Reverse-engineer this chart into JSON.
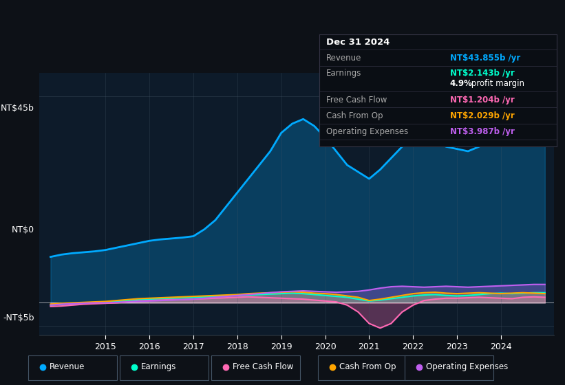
{
  "background_color": "#0d1117",
  "plot_bg_color": "#0d1b2a",
  "title_box": {
    "date": "Dec 31 2024",
    "revenue_label": "Revenue",
    "revenue_value": "NT$43.855b /yr",
    "revenue_color": "#00aaff",
    "earnings_label": "Earnings",
    "earnings_value": "NT$2.143b /yr",
    "earnings_color": "#00ffcc",
    "margin_value": "4.9%",
    "margin_text": " profit margin",
    "margin_color": "#ffffff",
    "fcf_label": "Free Cash Flow",
    "fcf_value": "NT$1.204b /yr",
    "fcf_color": "#ff69b4",
    "cashfromop_label": "Cash From Op",
    "cashfromop_value": "NT$2.029b /yr",
    "cashfromop_color": "#ffa500",
    "opex_label": "Operating Expenses",
    "opex_value": "NT$3.987b /yr",
    "opex_color": "#bf5fef"
  },
  "ylim": [
    -7,
    50
  ],
  "yticks": [
    0,
    45
  ],
  "ytick_labels": [
    "NT$0",
    "NT$45b"
  ],
  "ytick_neg": [
    -5
  ],
  "ytick_neg_labels": [
    "-NT$5b"
  ],
  "xlim": [
    2013.5,
    2025.2
  ],
  "xticks": [
    2015,
    2016,
    2017,
    2018,
    2019,
    2020,
    2021,
    2022,
    2023,
    2024
  ],
  "legend": [
    {
      "label": "Revenue",
      "color": "#00aaff"
    },
    {
      "label": "Earnings",
      "color": "#00ffcc"
    },
    {
      "label": "Free Cash Flow",
      "color": "#ff69b4"
    },
    {
      "label": "Cash From Op",
      "color": "#ffa500"
    },
    {
      "label": "Operating Expenses",
      "color": "#bf5fef"
    }
  ],
  "revenue": {
    "x": [
      2013.75,
      2014.0,
      2014.25,
      2014.5,
      2014.75,
      2015.0,
      2015.25,
      2015.5,
      2015.75,
      2016.0,
      2016.25,
      2016.5,
      2016.75,
      2017.0,
      2017.25,
      2017.5,
      2017.75,
      2018.0,
      2018.25,
      2018.5,
      2018.75,
      2019.0,
      2019.25,
      2019.5,
      2019.75,
      2020.0,
      2020.25,
      2020.5,
      2020.75,
      2021.0,
      2021.25,
      2021.5,
      2021.75,
      2022.0,
      2022.25,
      2022.5,
      2022.75,
      2023.0,
      2023.25,
      2023.5,
      2023.75,
      2024.0,
      2024.25,
      2024.5,
      2024.75,
      2025.0
    ],
    "y": [
      10,
      10.5,
      10.8,
      11.0,
      11.2,
      11.5,
      12.0,
      12.5,
      13.0,
      13.5,
      13.8,
      14.0,
      14.2,
      14.5,
      16.0,
      18.0,
      21.0,
      24.0,
      27.0,
      30.0,
      33.0,
      37.0,
      39.0,
      40.0,
      38.5,
      36.0,
      33.0,
      30.0,
      28.5,
      27.0,
      29.0,
      31.5,
      34.0,
      36.0,
      36.5,
      35.5,
      34.0,
      33.5,
      33.0,
      34.0,
      35.5,
      37.0,
      39.0,
      42.0,
      44.5,
      45.5
    ],
    "color": "#00aaff",
    "linewidth": 2.0
  },
  "earnings": {
    "x": [
      2013.75,
      2014.0,
      2014.25,
      2014.5,
      2014.75,
      2015.0,
      2015.25,
      2015.5,
      2015.75,
      2016.0,
      2016.25,
      2016.5,
      2016.75,
      2017.0,
      2017.25,
      2017.5,
      2017.75,
      2018.0,
      2018.25,
      2018.5,
      2018.75,
      2019.0,
      2019.25,
      2019.5,
      2019.75,
      2020.0,
      2020.25,
      2020.5,
      2020.75,
      2021.0,
      2021.25,
      2021.5,
      2021.75,
      2022.0,
      2022.25,
      2022.5,
      2022.75,
      2023.0,
      2023.25,
      2023.5,
      2023.75,
      2024.0,
      2024.25,
      2024.5,
      2024.75,
      2025.0
    ],
    "y": [
      -0.5,
      -0.3,
      -0.2,
      0.0,
      0.1,
      0.2,
      0.3,
      0.5,
      0.7,
      0.8,
      0.9,
      1.0,
      1.1,
      1.2,
      1.3,
      1.4,
      1.5,
      1.6,
      1.7,
      1.8,
      1.9,
      2.0,
      2.1,
      2.0,
      1.8,
      1.6,
      1.4,
      1.2,
      0.8,
      0.4,
      0.6,
      0.9,
      1.2,
      1.5,
      1.7,
      1.8,
      1.6,
      1.5,
      1.6,
      1.8,
      2.0,
      2.1,
      2.0,
      2.1,
      2.2,
      2.2
    ],
    "color": "#00ffcc",
    "linewidth": 1.5
  },
  "free_cash_flow": {
    "x": [
      2013.75,
      2014.0,
      2014.25,
      2014.5,
      2014.75,
      2015.0,
      2015.25,
      2015.5,
      2015.75,
      2016.0,
      2016.25,
      2016.5,
      2016.75,
      2017.0,
      2017.25,
      2017.5,
      2017.75,
      2018.0,
      2018.25,
      2018.5,
      2018.75,
      2019.0,
      2019.25,
      2019.5,
      2019.75,
      2020.0,
      2020.25,
      2020.5,
      2020.75,
      2021.0,
      2021.25,
      2021.5,
      2021.75,
      2022.0,
      2022.25,
      2022.5,
      2022.75,
      2023.0,
      2023.25,
      2023.5,
      2023.75,
      2024.0,
      2024.25,
      2024.5,
      2024.75,
      2025.0
    ],
    "y": [
      -0.8,
      -0.7,
      -0.5,
      -0.3,
      -0.2,
      -0.1,
      0.0,
      0.2,
      0.4,
      0.5,
      0.6,
      0.7,
      0.7,
      0.8,
      0.9,
      1.0,
      1.1,
      1.2,
      1.3,
      1.2,
      1.1,
      1.0,
      0.9,
      0.8,
      0.6,
      0.4,
      0.2,
      -0.5,
      -2.0,
      -4.5,
      -5.5,
      -4.5,
      -2.0,
      -0.5,
      0.5,
      0.8,
      1.0,
      1.0,
      1.1,
      1.2,
      1.1,
      1.0,
      0.9,
      1.2,
      1.3,
      1.2
    ],
    "color": "#ff69b4",
    "linewidth": 1.5
  },
  "cash_from_op": {
    "x": [
      2013.75,
      2014.0,
      2014.25,
      2014.5,
      2014.75,
      2015.0,
      2015.25,
      2015.5,
      2015.75,
      2016.0,
      2016.25,
      2016.5,
      2016.75,
      2017.0,
      2017.25,
      2017.5,
      2017.75,
      2018.0,
      2018.25,
      2018.5,
      2018.75,
      2019.0,
      2019.25,
      2019.5,
      2019.75,
      2020.0,
      2020.25,
      2020.5,
      2020.75,
      2021.0,
      2021.25,
      2021.5,
      2021.75,
      2022.0,
      2022.25,
      2022.5,
      2022.75,
      2023.0,
      2023.25,
      2023.5,
      2023.75,
      2024.0,
      2024.25,
      2024.5,
      2024.75,
      2025.0
    ],
    "y": [
      -0.3,
      -0.1,
      0.0,
      0.1,
      0.2,
      0.3,
      0.5,
      0.7,
      0.9,
      1.0,
      1.1,
      1.2,
      1.3,
      1.4,
      1.5,
      1.6,
      1.7,
      1.8,
      2.0,
      2.1,
      2.2,
      2.3,
      2.4,
      2.3,
      2.1,
      2.0,
      1.8,
      1.5,
      1.2,
      0.5,
      0.8,
      1.2,
      1.6,
      2.0,
      2.2,
      2.3,
      2.1,
      2.0,
      2.1,
      2.2,
      2.1,
      2.0,
      2.1,
      2.2,
      2.1,
      2.0
    ],
    "color": "#ffa500",
    "linewidth": 1.5
  },
  "operating_expenses": {
    "x": [
      2013.75,
      2014.0,
      2014.25,
      2014.5,
      2014.75,
      2015.0,
      2015.25,
      2015.5,
      2015.75,
      2016.0,
      2016.25,
      2016.5,
      2016.75,
      2017.0,
      2017.25,
      2017.5,
      2017.75,
      2018.0,
      2018.25,
      2018.5,
      2018.75,
      2019.0,
      2019.25,
      2019.5,
      2019.75,
      2020.0,
      2020.25,
      2020.5,
      2020.75,
      2021.0,
      2021.25,
      2021.5,
      2021.75,
      2022.0,
      2022.25,
      2022.5,
      2022.75,
      2023.0,
      2023.25,
      2023.5,
      2023.75,
      2024.0,
      2024.25,
      2024.5,
      2024.75,
      2025.0
    ],
    "y": [
      -0.5,
      -0.3,
      -0.2,
      -0.1,
      0.0,
      0.0,
      0.1,
      0.2,
      0.3,
      0.4,
      0.5,
      0.6,
      0.7,
      0.8,
      1.0,
      1.2,
      1.4,
      1.6,
      1.8,
      2.0,
      2.2,
      2.4,
      2.5,
      2.6,
      2.5,
      2.4,
      2.3,
      2.4,
      2.5,
      2.8,
      3.2,
      3.5,
      3.6,
      3.5,
      3.4,
      3.5,
      3.6,
      3.5,
      3.4,
      3.5,
      3.6,
      3.7,
      3.8,
      3.9,
      4.0,
      4.0
    ],
    "color": "#bf5fef",
    "linewidth": 1.5
  }
}
